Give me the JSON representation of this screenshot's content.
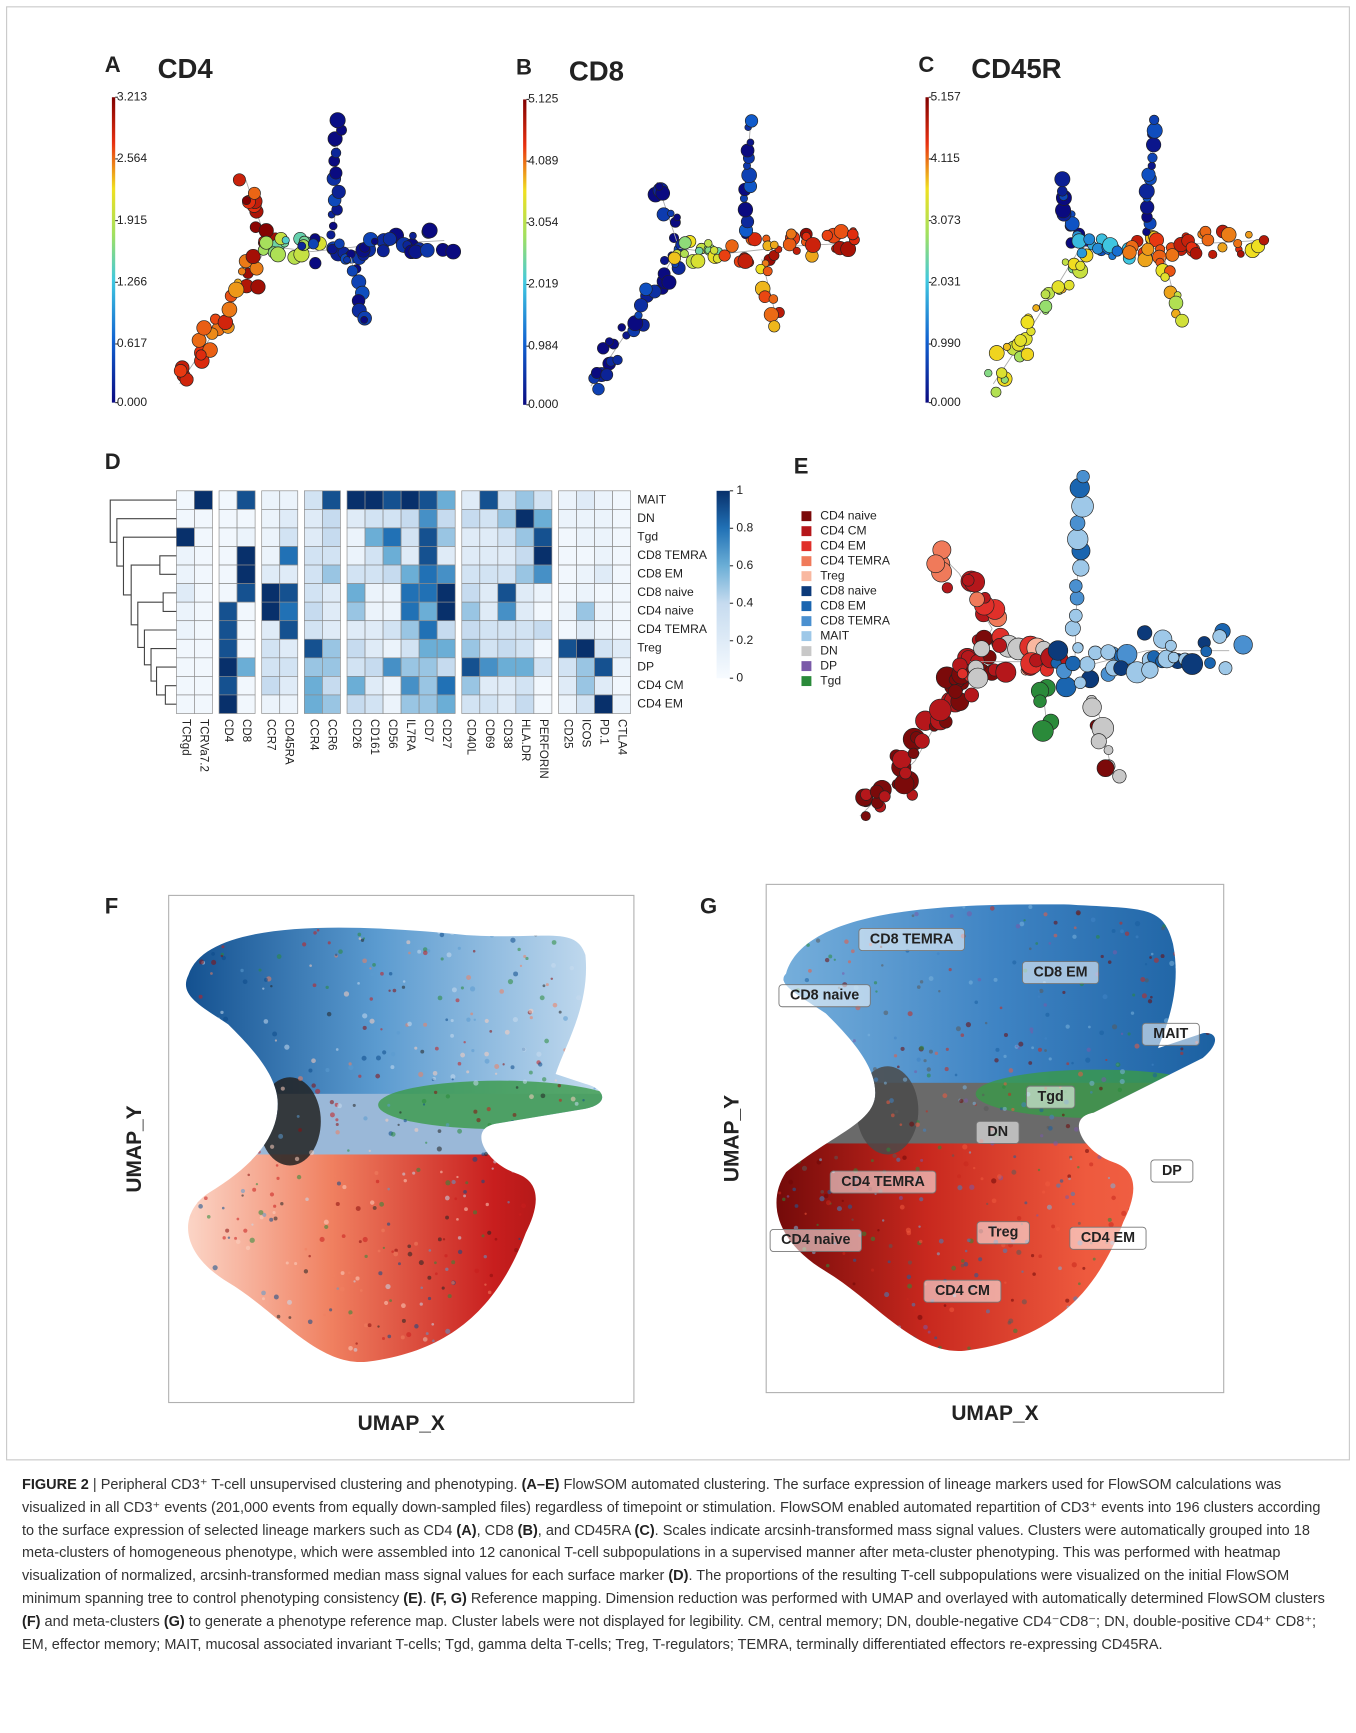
{
  "marker_panels": [
    {
      "letter": "A",
      "title": "CD4",
      "title_color": "#c00000",
      "clim": [
        0,
        3.213
      ],
      "colorbar_ticks": [
        {
          "value": 0,
          "label": "0.000"
        },
        0.617,
        1.266,
        1.915,
        2.564,
        3.213
      ]
    },
    {
      "letter": "B",
      "title": "CD8",
      "title_color": "#4472c4",
      "clim": [
        0,
        5.125
      ],
      "colorbar_ticks": [
        {
          "value": 0,
          "label": "0.000"
        },
        0.984,
        2.019,
        3.054,
        4.089,
        5.125
      ]
    },
    {
      "letter": "C",
      "title": "CD45R",
      "title_color": "#808080",
      "clim": [
        0,
        5.157
      ],
      "colorbar_ticks": [
        {
          "value": 0,
          "label": "0.000"
        },
        {
          "value": 0.99,
          "label": "0.990"
        },
        2.031,
        3.073,
        4.115,
        5.157
      ]
    }
  ],
  "heatmap": {
    "letter": "D",
    "type": "heatmap",
    "rows": [
      "MAIT",
      "DN",
      "Tgd",
      "CD8 TEMRA",
      "CD8 EM",
      "CD8 naive",
      "CD4 naive",
      "CD4 TEMRA",
      "Treg",
      "DP",
      "CD4 CM",
      "CD4 EM"
    ],
    "columns": [
      "TCRgd",
      "TCRVa7.2",
      "CD4",
      "CD8",
      "CCR7",
      "CD45RA",
      "CCR4",
      "CCR6",
      "CD26",
      "CD161",
      "CD56",
      "IL7RA",
      "CD7",
      "CD27",
      "CD40L",
      "CD69",
      "CD38",
      "HLA.DR",
      "PERFORIN",
      "CD25",
      "ICOS",
      "PD.1",
      "CTLA4"
    ],
    "values": [
      [
        0.05,
        1.0,
        0.05,
        0.9,
        0.1,
        0.1,
        0.3,
        0.9,
        1.0,
        1.0,
        0.9,
        1.0,
        0.9,
        0.6,
        0.2,
        0.9,
        0.3,
        0.5,
        0.3,
        0.1,
        0.2,
        0.1,
        0.05
      ],
      [
        0.05,
        0.05,
        0.05,
        0.05,
        0.1,
        0.2,
        0.2,
        0.4,
        0.2,
        0.3,
        0.3,
        0.4,
        0.7,
        0.4,
        0.4,
        0.3,
        0.5,
        1.0,
        0.6,
        0.1,
        0.1,
        0.1,
        0.05
      ],
      [
        1.0,
        0.05,
        0.05,
        0.1,
        0.1,
        0.3,
        0.2,
        0.4,
        0.1,
        0.6,
        0.8,
        0.3,
        0.9,
        0.5,
        0.2,
        0.2,
        0.3,
        0.5,
        0.9,
        0.05,
        0.1,
        0.1,
        0.05
      ],
      [
        0.1,
        0.05,
        0.05,
        1.0,
        0.1,
        0.8,
        0.3,
        0.3,
        0.1,
        0.3,
        0.6,
        0.2,
        0.9,
        0.2,
        0.2,
        0.2,
        0.2,
        0.4,
        1.0,
        0.05,
        0.05,
        0.1,
        0.05
      ],
      [
        0.1,
        0.05,
        0.05,
        1.0,
        0.2,
        0.2,
        0.3,
        0.5,
        0.3,
        0.3,
        0.4,
        0.6,
        0.8,
        0.7,
        0.3,
        0.3,
        0.3,
        0.5,
        0.7,
        0.05,
        0.1,
        0.2,
        0.05
      ],
      [
        0.2,
        0.05,
        0.05,
        0.9,
        1.0,
        0.9,
        0.3,
        0.2,
        0.6,
        0.1,
        0.1,
        0.8,
        0.8,
        1.0,
        0.4,
        0.2,
        0.9,
        0.2,
        0.1,
        0.05,
        0.1,
        0.05,
        0.05
      ],
      [
        0.1,
        0.05,
        0.9,
        0.05,
        1.0,
        0.8,
        0.4,
        0.2,
        0.5,
        0.1,
        0.1,
        0.8,
        0.6,
        1.0,
        0.5,
        0.2,
        0.7,
        0.2,
        0.05,
        0.1,
        0.5,
        0.1,
        0.05
      ],
      [
        0.1,
        0.05,
        0.9,
        0.05,
        0.2,
        0.9,
        0.3,
        0.2,
        0.2,
        0.2,
        0.3,
        0.5,
        0.8,
        0.4,
        0.4,
        0.3,
        0.3,
        0.3,
        0.4,
        0.05,
        0.2,
        0.1,
        0.05
      ],
      [
        0.05,
        0.05,
        0.9,
        0.05,
        0.3,
        0.2,
        0.9,
        0.5,
        0.4,
        0.2,
        0.1,
        0.3,
        0.6,
        0.6,
        0.5,
        0.3,
        0.4,
        0.3,
        0.05,
        0.9,
        1.0,
        0.3,
        0.2
      ],
      [
        0.05,
        0.05,
        1.0,
        0.6,
        0.3,
        0.3,
        0.5,
        0.5,
        0.3,
        0.4,
        0.7,
        0.5,
        0.5,
        0.4,
        0.9,
        0.7,
        0.6,
        0.6,
        0.3,
        0.3,
        0.5,
        0.9,
        0.1
      ],
      [
        0.05,
        0.05,
        0.9,
        0.05,
        0.4,
        0.2,
        0.6,
        0.4,
        0.6,
        0.2,
        0.1,
        0.7,
        0.5,
        0.8,
        0.5,
        0.2,
        0.2,
        0.3,
        0.05,
        0.2,
        0.5,
        0.2,
        0.05
      ],
      [
        0.05,
        0.05,
        1.0,
        0.05,
        0.1,
        0.1,
        0.6,
        0.5,
        0.4,
        0.3,
        0.1,
        0.5,
        0.5,
        0.6,
        0.3,
        0.3,
        0.2,
        0.4,
        0.05,
        0.1,
        0.3,
        1.0,
        0.1
      ]
    ],
    "clim": [
      0,
      1
    ],
    "colorbar_ticks": [
      0,
      0.2,
      0.4,
      0.6,
      0.8,
      1
    ]
  },
  "tree": {
    "letter": "E",
    "legend": [
      {
        "name": "CD4 naive",
        "color": "#7b0a0a"
      },
      {
        "name": "CD4 CM",
        "color": "#b5171b"
      },
      {
        "name": "CD4 EM",
        "color": "#e0302a"
      },
      {
        "name": "CD4 TEMRA",
        "color": "#f07a5a"
      },
      {
        "name": "Treg",
        "color": "#f9b8a0"
      },
      {
        "name": "CD8 naive",
        "color": "#0c3a7a"
      },
      {
        "name": "CD8 EM",
        "color": "#1a65b0"
      },
      {
        "name": "CD8 TEMRA",
        "color": "#4a90d0"
      },
      {
        "name": "MAIT",
        "color": "#9ec8e8"
      },
      {
        "name": "DN",
        "color": "#c8c8c8"
      },
      {
        "name": "DP",
        "color": "#7a5aa8"
      },
      {
        "name": "Tgd",
        "color": "#2a8a3a"
      }
    ]
  },
  "umap_panels": [
    {
      "letter": "F",
      "x_label": "UMAP_X",
      "y_label": "UMAP_Y"
    },
    {
      "letter": "G",
      "x_label": "UMAP_X",
      "y_label": "UMAP_Y",
      "cluster_labels": [
        "CD8 TEMRA",
        "CD8 EM",
        "CD8 naive",
        "MAIT",
        "Tgd",
        "DN",
        "DP",
        "CD4 TEMRA",
        "Treg",
        "CD4 EM",
        "CD4 naive",
        "CD4 CM"
      ]
    }
  ],
  "caption": {
    "runs": [
      {
        "text": "FIGURE 2",
        "bold": true
      },
      {
        "text": " | Peripheral CD3⁺ T-cell unsupervised clustering and phenotyping. "
      },
      {
        "text": "(A–E)",
        "bold": true
      },
      {
        "text": " FlowSOM automated clustering. The surface expression of lineage markers used for FlowSOM calculations was visualized in all CD3⁺ events (201,000 events from equally down-sampled files) regardless of timepoint or stimulation. FlowSOM enabled automated repartition of CD3⁺ events into 196 clusters according to the surface expression of selected lineage markers such as CD4 "
      },
      {
        "text": "(A)",
        "bold": true
      },
      {
        "text": ", CD8 "
      },
      {
        "text": "(B)",
        "bold": true
      },
      {
        "text": ", and CD45RA "
      },
      {
        "text": "(C)",
        "bold": true
      },
      {
        "text": ". Scales indicate arcsinh-transformed mass signal values. Clusters were automatically grouped into 18 meta-clusters of homogeneous phenotype, which were assembled into 12 canonical T-cell subpopulations in a supervised manner after meta-cluster phenotyping. This was performed with heatmap visualization of normalized, arcsinh-transformed median mass signal values for each surface marker "
      },
      {
        "text": "(D)",
        "bold": true
      },
      {
        "text": ". The proportions of the resulting T-cell subpopulations were visualized on the initial FlowSOM minimum spanning tree to control phenotyping consistency "
      },
      {
        "text": "(E)",
        "bold": true
      },
      {
        "text": ". "
      },
      {
        "text": "(F, G)",
        "bold": true
      },
      {
        "text": " Reference mapping. Dimension reduction was performed with UMAP and overlayed with automatically determined FlowSOM clusters "
      },
      {
        "text": "(F)",
        "bold": true
      },
      {
        "text": " and meta-clusters "
      },
      {
        "text": "(G)",
        "bold": true
      },
      {
        "text": " to generate a phenotype reference map. Cluster labels were not displayed for legibility. CM, central memory; DN, double-negative CD4⁻CD8⁻; DN, double-positive CD4⁺ CD8⁺; EM, effector memory; MAIT, mucosal associated invariant T-cells; Tgd, gamma delta T-cells; Treg, T-regulators; TEMRA, terminally differentiated effectors re-expressing CD45RA."
      }
    ]
  }
}
